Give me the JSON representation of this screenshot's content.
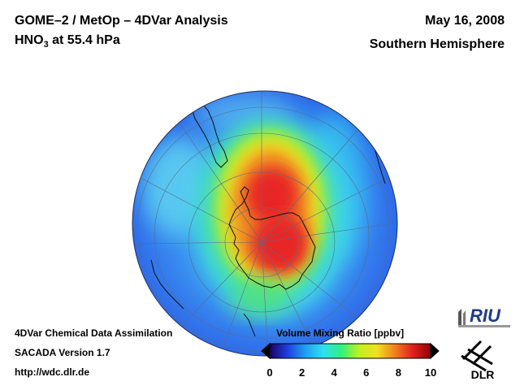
{
  "header": {
    "title_line1": "GOME–2 / MetOp – 4DVar Analysis",
    "species_prefix": "HNO",
    "species_subscript": "3",
    "species_suffix": " at 55.4 hPa",
    "date": "May 16, 2008",
    "region": "Southern Hemisphere"
  },
  "footer": {
    "line1": "4DVar Chemical Data Assimilation",
    "line2": "SACADA Version 1.7",
    "line3": "http://wdc.dlr.de"
  },
  "colorbar": {
    "title": "Volume Mixing Ratio [ppbv]",
    "ticks": [
      "0",
      "2",
      "4",
      "6",
      "8",
      "10"
    ],
    "range": [
      0,
      10
    ],
    "colors": [
      "#1a0060",
      "#1f3fe0",
      "#1f9ff0",
      "#2fe0f0",
      "#30f080",
      "#c0f020",
      "#f0e020",
      "#f08020",
      "#e02020",
      "#900000"
    ]
  },
  "logos": {
    "riu": "RIU",
    "dlr": "DLR"
  },
  "map": {
    "projection": "orthographic, south polar view",
    "field_icon": "hno3-field-icon",
    "colors": {
      "ocean_low": "#2a6ff0",
      "mid": "#4fd0f0",
      "high": "#e82525"
    }
  }
}
